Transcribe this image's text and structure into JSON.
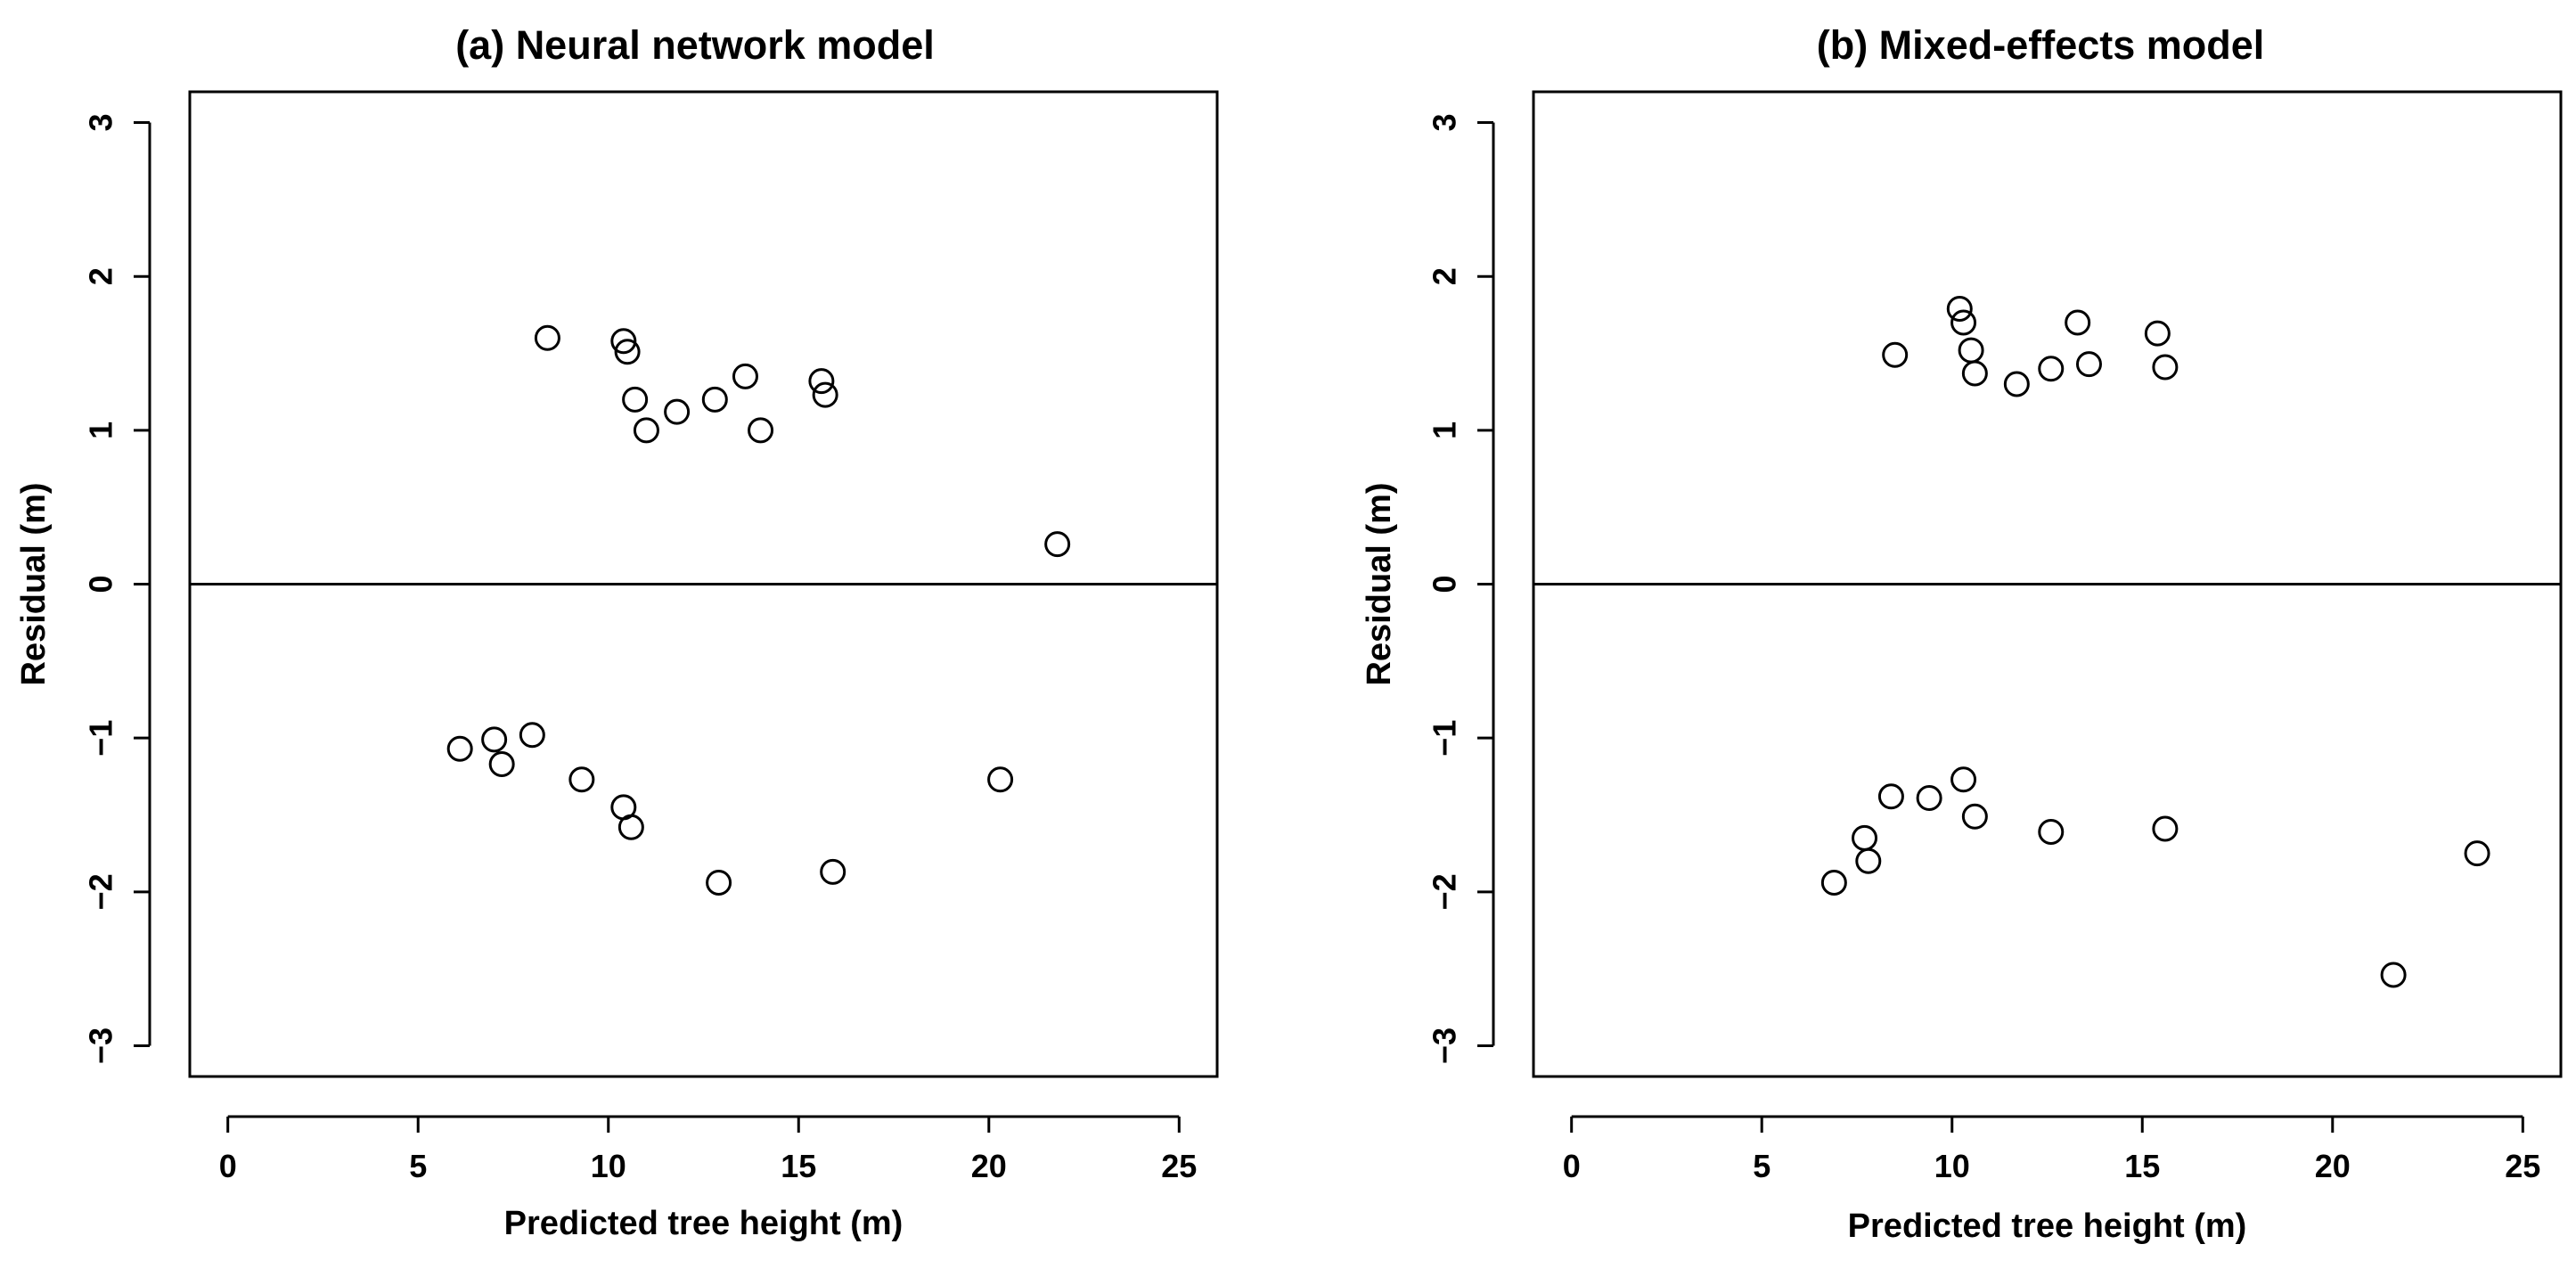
{
  "chart_data": [
    {
      "type": "scatter",
      "title": "(a) Neural network model",
      "xlabel": "Predicted tree height (m)",
      "ylabel": "Residual (m)",
      "xlim": [
        -1,
        26
      ],
      "ylim": [
        -3.2,
        3.2
      ],
      "xticks": [
        0,
        5,
        10,
        15,
        20,
        25
      ],
      "yticks": [
        -3,
        -2,
        -1,
        0,
        1,
        2,
        3
      ],
      "xtick_labels": [
        "0",
        "5",
        "10",
        "15",
        "20",
        "25"
      ],
      "ytick_labels": [
        "−3",
        "−2",
        "−1",
        "0",
        "1",
        "2",
        "3"
      ],
      "reference_line_y": 0,
      "marker": "open-circle",
      "points": [
        {
          "x": 8.4,
          "y": 1.6
        },
        {
          "x": 10.4,
          "y": 1.58
        },
        {
          "x": 10.5,
          "y": 1.51
        },
        {
          "x": 10.7,
          "y": 1.2
        },
        {
          "x": 11.0,
          "y": 1.0
        },
        {
          "x": 11.8,
          "y": 1.12
        },
        {
          "x": 12.8,
          "y": 1.2
        },
        {
          "x": 13.6,
          "y": 1.35
        },
        {
          "x": 14.0,
          "y": 1.0
        },
        {
          "x": 15.6,
          "y": 1.32
        },
        {
          "x": 15.7,
          "y": 1.23
        },
        {
          "x": 21.8,
          "y": 0.26
        },
        {
          "x": 6.1,
          "y": -1.07
        },
        {
          "x": 7.0,
          "y": -1.01
        },
        {
          "x": 7.2,
          "y": -1.17
        },
        {
          "x": 8.0,
          "y": -0.98
        },
        {
          "x": 9.3,
          "y": -1.27
        },
        {
          "x": 10.4,
          "y": -1.45
        },
        {
          "x": 10.6,
          "y": -1.58
        },
        {
          "x": 12.9,
          "y": -1.94
        },
        {
          "x": 15.9,
          "y": -1.87
        },
        {
          "x": 20.3,
          "y": -1.27
        }
      ]
    },
    {
      "type": "scatter",
      "title": "(b) Mixed-effects model",
      "xlabel": "Predicted tree height (m)",
      "ylabel": "Residual (m)",
      "xlim": [
        -1,
        26
      ],
      "ylim": [
        -3.2,
        3.2
      ],
      "xticks": [
        0,
        5,
        10,
        15,
        20,
        25
      ],
      "yticks": [
        -3,
        -2,
        -1,
        0,
        1,
        2,
        3
      ],
      "xtick_labels": [
        "0",
        "5",
        "10",
        "15",
        "20",
        "25"
      ],
      "ytick_labels": [
        "−3",
        "−2",
        "−1",
        "0",
        "1",
        "2",
        "3"
      ],
      "reference_line_y": 0,
      "marker": "open-circle",
      "points": [
        {
          "x": 8.5,
          "y": 1.49
        },
        {
          "x": 10.2,
          "y": 1.79
        },
        {
          "x": 10.3,
          "y": 1.7
        },
        {
          "x": 10.5,
          "y": 1.52
        },
        {
          "x": 10.6,
          "y": 1.37
        },
        {
          "x": 11.7,
          "y": 1.3
        },
        {
          "x": 12.6,
          "y": 1.4
        },
        {
          "x": 13.3,
          "y": 1.7
        },
        {
          "x": 13.6,
          "y": 1.43
        },
        {
          "x": 15.4,
          "y": 1.63
        },
        {
          "x": 15.6,
          "y": 1.41
        },
        {
          "x": 6.9,
          "y": -1.94
        },
        {
          "x": 7.7,
          "y": -1.65
        },
        {
          "x": 7.8,
          "y": -1.8
        },
        {
          "x": 8.4,
          "y": -1.38
        },
        {
          "x": 9.4,
          "y": -1.39
        },
        {
          "x": 10.3,
          "y": -1.27
        },
        {
          "x": 10.6,
          "y": -1.51
        },
        {
          "x": 12.6,
          "y": -1.61
        },
        {
          "x": 15.6,
          "y": -1.59
        },
        {
          "x": 21.6,
          "y": -2.54
        },
        {
          "x": 23.8,
          "y": -1.75
        }
      ]
    }
  ]
}
